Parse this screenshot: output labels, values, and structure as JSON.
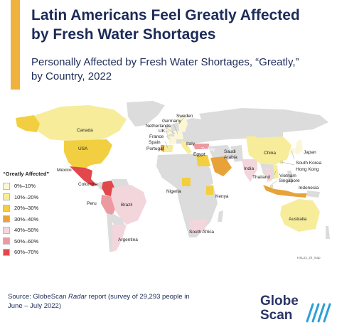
{
  "header": {
    "title_line1": "Latin Americans Feel Greatly Affected",
    "title_line2": "by Fresh Water Shortages",
    "subtitle_line1": "Personally Affected by Fresh Water Shortages, “Greatly,”",
    "subtitle_line2": "by Country, 2022"
  },
  "legend": {
    "title": "“Greatly Affected”",
    "items": [
      {
        "label": "0%–10%",
        "color": "#fbf7d6"
      },
      {
        "label": "10%–20%",
        "color": "#f7ec9a"
      },
      {
        "label": "20%–30%",
        "color": "#f2cf40"
      },
      {
        "label": "30%–40%",
        "color": "#e8a23a"
      },
      {
        "label": "40%–50%",
        "color": "#f3d6dc"
      },
      {
        "label": "50%–60%",
        "color": "#ea9aa0"
      },
      {
        "label": "60%–70%",
        "color": "#e2474c"
      }
    ]
  },
  "colors": {
    "land_no_data": "#dcdcdc",
    "title_text": "#1d2b58",
    "accent": "#f0b23e",
    "logo_blue": "#2ba0d8"
  },
  "countries": {
    "canada": "Canada",
    "usa": "USA",
    "mexico": "Mexico",
    "colombia": "Colombia",
    "peru": "Peru",
    "brazil": "Brazil",
    "argentina": "Argentina",
    "sweden": "Sweden",
    "germany": "Germany",
    "netherlands": "Netherlands",
    "uk": "UK",
    "france": "France",
    "spain": "Spain",
    "portugal": "Portugal",
    "italy": "Italy",
    "turkey": "Turkey",
    "egypt": "Egypt",
    "saudi_arabia_line1": "Saudi",
    "saudi_arabia_line2": "Arabia",
    "nigeria": "Nigeria",
    "kenya": "Kenya",
    "south_africa": "South Africa",
    "india": "India",
    "china": "China",
    "japan": "Japan",
    "south_korea": "South Korea",
    "hong_kong": "Hong Kong",
    "vietnam": "Vietnam",
    "thailand": "Thailand",
    "singapore": "Singapore",
    "indonesia": "Indonesia",
    "australia": "Australia"
  },
  "country_values": {
    "canada": "10%–20%",
    "usa": "20%–30%",
    "mexico": "60%–70%",
    "colombia": "60%–70%",
    "peru": "50%–60%",
    "brazil": "40%–50%",
    "argentina": "40%–50%",
    "portugal": "30%–40%",
    "spain": "10%–20%",
    "france": "0%–10%",
    "uk": "0%–10%",
    "netherlands": "0%–10%",
    "germany": "0%–10%",
    "sweden": "0%–10%",
    "italy": "10%–20%",
    "turkey": "50%–60%",
    "egypt": "20%–30%",
    "saudi_arabia": "30%–40%",
    "nigeria": "20%–30%",
    "kenya": "20%–30%",
    "south_africa": "40%–50%",
    "india": "40%–50%",
    "china": "10%–20%",
    "japan": "0%–10%",
    "south_korea": "0%–10%",
    "hong_kong": "10%–20%",
    "vietnam": "10%–20%",
    "thailand": "40%–50%",
    "singapore": "10%–20%",
    "indonesia": "30%–40%",
    "australia": "10%–20%"
  },
  "map_code": "HSL22_2h_map",
  "source": {
    "prefix": "Source: GlobeScan ",
    "italic": "Radar",
    "suffix_line1": " report (survey of 29,293 people in",
    "line2": "June – July 2022)"
  },
  "logo": {
    "word1": "Globe",
    "word2": "Scan"
  }
}
